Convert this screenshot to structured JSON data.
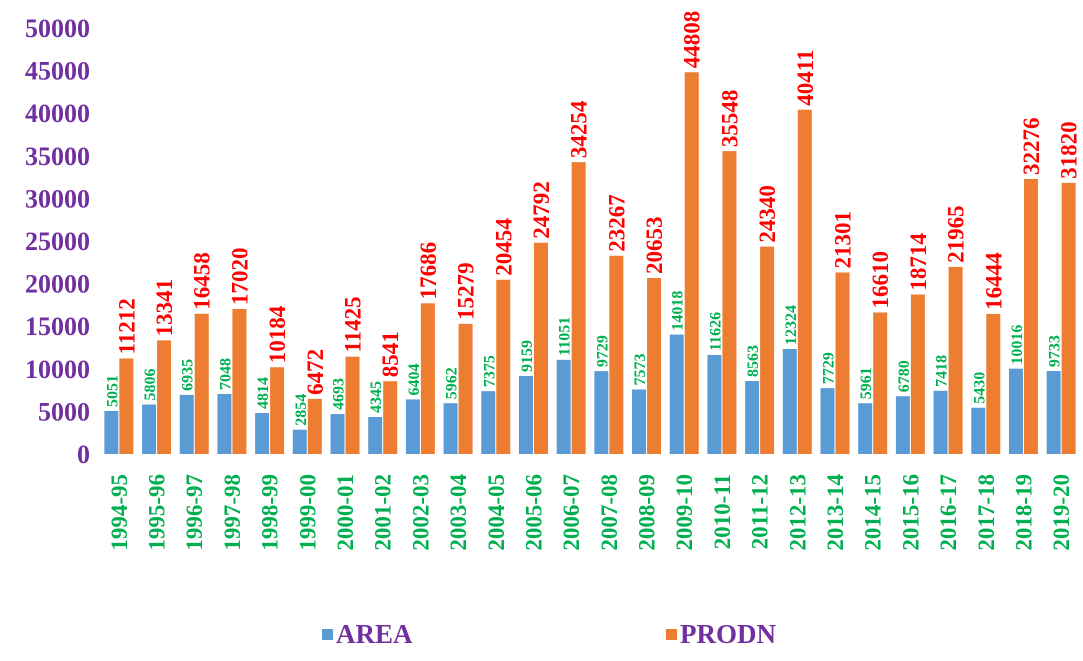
{
  "chart_data": {
    "type": "bar",
    "title": "",
    "xlabel": "",
    "ylabel": "",
    "ylim": [
      0,
      50000
    ],
    "yticks": [
      0,
      5000,
      10000,
      15000,
      20000,
      25000,
      30000,
      35000,
      40000,
      45000,
      50000
    ],
    "grid": false,
    "legend_position": "bottom",
    "categories": [
      "1994-95",
      "1995-96",
      "1996-97",
      "1997-98",
      "1998-99",
      "1999-00",
      "2000-01",
      "2001-02",
      "2002-03",
      "2003-04",
      "2004-05",
      "2005-06",
      "2006-07",
      "2007-08",
      "2008-09",
      "2009-10",
      "2010-11",
      "2011-12",
      "2012-13",
      "2013-14",
      "2014-15",
      "2015-16",
      "2016-17",
      "2017-18",
      "2018-19",
      "2019-20"
    ],
    "series": [
      {
        "name": "AREA",
        "color": "#5b9bd5",
        "label_color": "#00b050",
        "values": [
          5051,
          5806,
          6935,
          7048,
          4814,
          2854,
          4693,
          4345,
          6404,
          5962,
          7375,
          9159,
          11051,
          9729,
          7573,
          14018,
          11626,
          8563,
          12324,
          7729,
          5961,
          6780,
          7418,
          5430,
          10016,
          9733
        ]
      },
      {
        "name": "PRODN",
        "color": "#ed7d31",
        "label_color": "#ff0000",
        "values": [
          11212,
          13341,
          16458,
          17020,
          10184,
          6472,
          11425,
          8541,
          17686,
          15279,
          20454,
          24792,
          34254,
          23267,
          20653,
          44808,
          35548,
          24340,
          40411,
          21301,
          16610,
          18714,
          21965,
          16444,
          32276,
          31820
        ]
      }
    ],
    "colors": {
      "ytick": "#7030a0",
      "xtick": "#00b050",
      "legend_text": "#7030a0"
    }
  }
}
